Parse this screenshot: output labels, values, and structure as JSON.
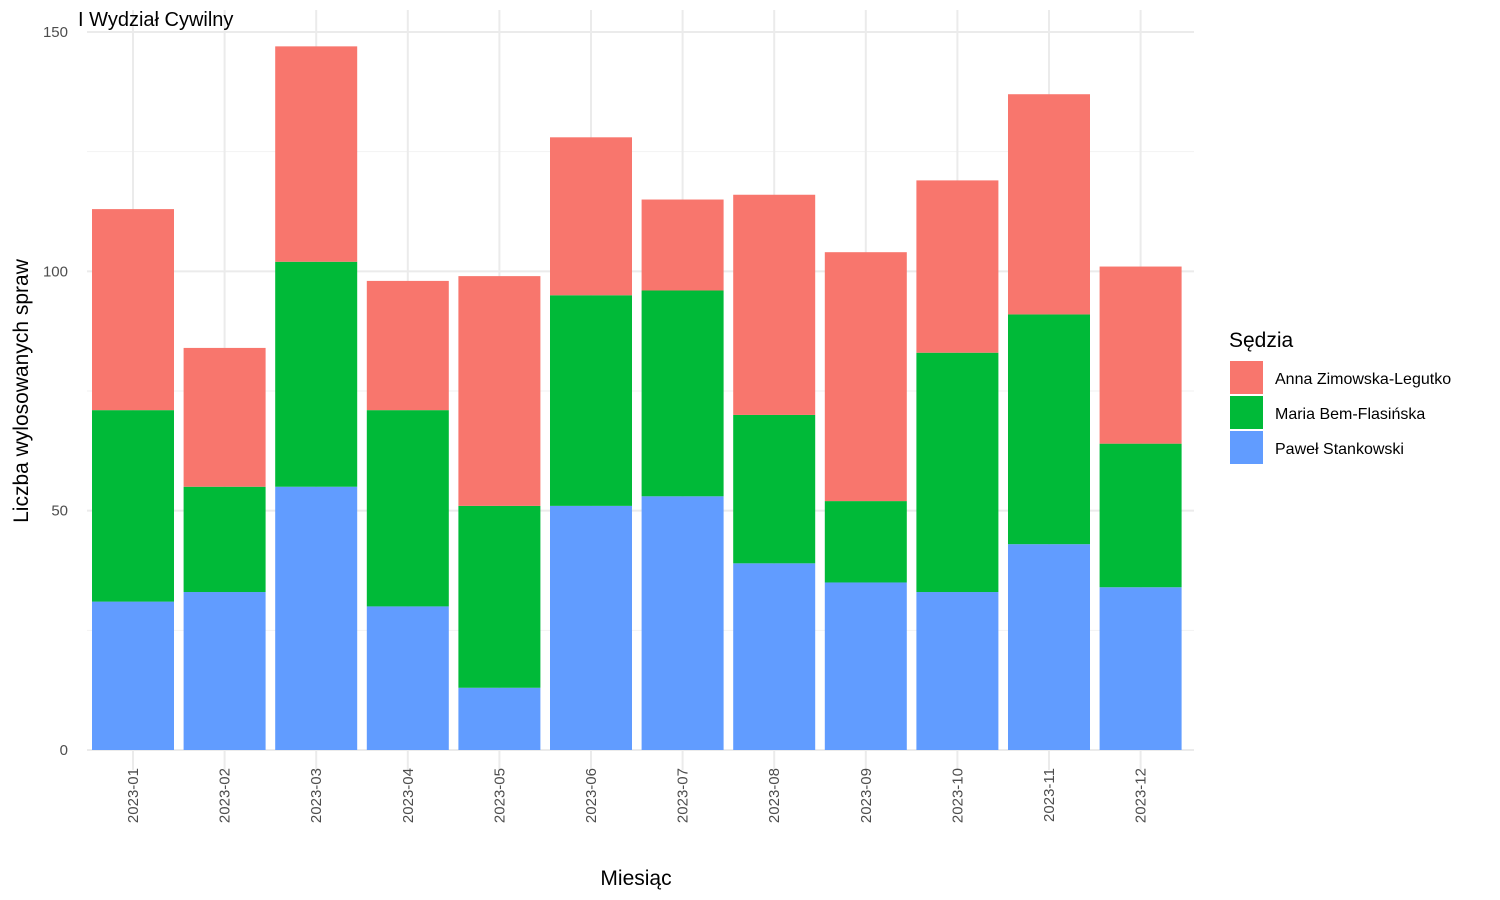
{
  "chart_data": {
    "type": "bar",
    "stacked": true,
    "title": "I Wydział Cywilny",
    "xlabel": "Miesiąc",
    "ylabel": "Liczba wylosowanych spraw",
    "ylim": [
      0,
      150
    ],
    "yticks": [
      0,
      50,
      100,
      150
    ],
    "grid": true,
    "legend_title": "Sędzia",
    "legend_position": "right",
    "categories": [
      "2023-01",
      "2023-02",
      "2023-03",
      "2023-04",
      "2023-05",
      "2023-06",
      "2023-07",
      "2023-08",
      "2023-09",
      "2023-10",
      "2023-11",
      "2023-12"
    ],
    "series": [
      {
        "name": "Paweł Stankowski",
        "color": "#619CFF",
        "values": [
          31,
          33,
          55,
          30,
          13,
          51,
          53,
          39,
          35,
          33,
          43,
          34
        ]
      },
      {
        "name": "Maria Bem-Flasińska",
        "color": "#00BA38",
        "values": [
          40,
          22,
          47,
          41,
          38,
          44,
          43,
          31,
          17,
          50,
          48,
          30
        ]
      },
      {
        "name": "Anna Zimowska-Legutko",
        "color": "#F8766D",
        "values": [
          42,
          29,
          45,
          27,
          48,
          33,
          19,
          46,
          52,
          36,
          46,
          37
        ]
      }
    ],
    "legend_order": [
      "Anna Zimowska-Legutko",
      "Maria Bem-Flasińska",
      "Paweł Stankowski"
    ]
  }
}
